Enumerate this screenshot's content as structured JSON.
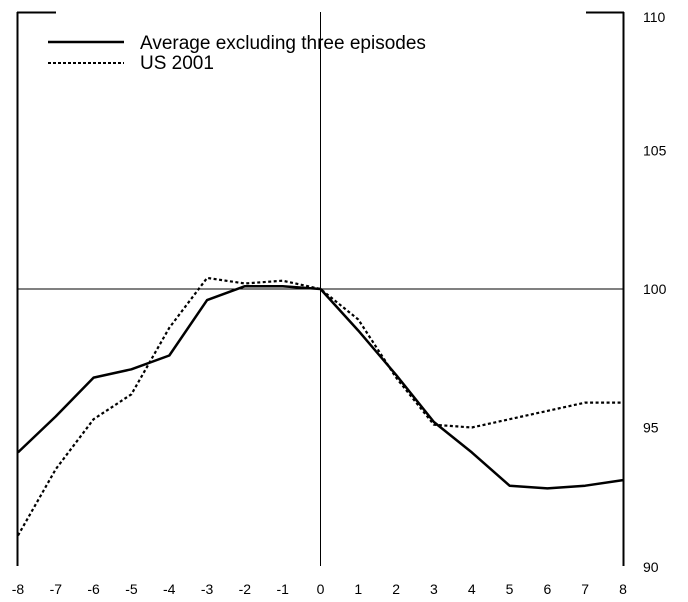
{
  "chart_data": {
    "type": "line",
    "title": "",
    "xlabel": "",
    "ylabel": "",
    "x": [
      -8,
      -7,
      -6,
      -5,
      -4,
      -3,
      -2,
      -1,
      0,
      1,
      2,
      3,
      4,
      5,
      6,
      7,
      8
    ],
    "xlim": [
      -8,
      8
    ],
    "ylim": [
      90,
      110
    ],
    "x_ticks": [
      "-8",
      "-7",
      "-6",
      "-5",
      "-4",
      "-3",
      "-2",
      "-1",
      "0",
      "1",
      "2",
      "3",
      "4",
      "5",
      "6",
      "7",
      "8"
    ],
    "y_ticks": [
      "90",
      "95",
      "100",
      "105",
      "110"
    ],
    "y_axis_side": "right",
    "grid": false,
    "reference_lines": {
      "x": 0,
      "y": 100
    },
    "legend_position": "top-left",
    "series": [
      {
        "name": "Average excluding three episodes",
        "style": "solid",
        "values": [
          94.1,
          95.4,
          96.8,
          97.1,
          97.6,
          99.6,
          100.1,
          100.1,
          100.0,
          98.5,
          96.9,
          95.2,
          94.1,
          92.9,
          92.8,
          92.9,
          93.1
        ]
      },
      {
        "name": "US 2001",
        "style": "dotted",
        "values": [
          91.1,
          93.5,
          95.3,
          96.2,
          98.6,
          100.4,
          100.2,
          100.3,
          100.0,
          98.9,
          96.8,
          95.1,
          95.0,
          95.3,
          95.6,
          95.9,
          95.9
        ]
      }
    ]
  }
}
